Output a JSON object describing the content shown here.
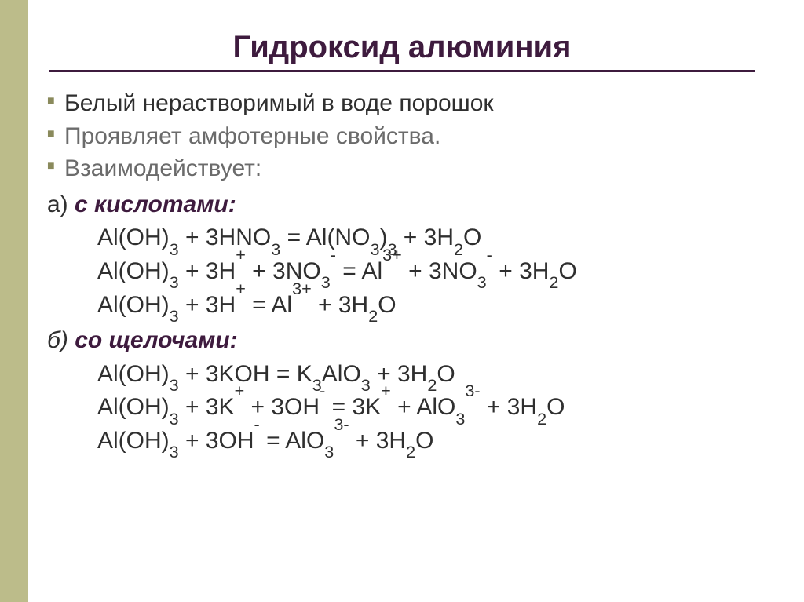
{
  "colors": {
    "sidebar": "#bcbc8a",
    "title": "#3e1b3e",
    "rule": "#3e1b3e",
    "bullet": "#8a8a5c",
    "body_dark": "#2f2f2f",
    "body_gray": "#6b6b6b",
    "section_label": "#3e1b3e",
    "background": "#ffffff"
  },
  "fonts": {
    "title_size": 40,
    "body_size": 30,
    "family": "Arial, Helvetica, sans-serif"
  },
  "title": "Гидроксид алюминия",
  "bullet_glyph": "■",
  "intro": {
    "line1": "Белый нерастворимый в воде порошок",
    "line2": "Проявляет амфотерные свойства.",
    "line3": "Взаимодействует:"
  },
  "section_a": {
    "label": "а) с кислотами:",
    "eq1": "Al(OH)<sub>3</sub> + 3HNO<sub>3</sub> = Al(NO<sub>3</sub>)<sub>3</sub> + 3H<sub>2</sub>O",
    "eq2": "Al(OH)<sub>3</sub> + 3H<sup>+</sup> + 3NO<sub>3</sub><sup>-</sup> = Al<sup>3+</sup> + 3NO<sub>3</sub><sup>-</sup> + 3H<sub>2</sub>O",
    "eq3": "Al(OH)<sub>3</sub> + 3H<sup>+</sup> = Al<sup>3+</sup> + 3H<sub>2</sub>O"
  },
  "section_b": {
    "label": "б) со щелочами:",
    "eq1": "Al(OH)<sub>3</sub> + 3KOH = K<sub>3</sub>AlO<sub>3</sub> + 3H<sub>2</sub>O",
    "eq2": "Al(OH)<sub>3</sub> + 3K<sup>+</sup> + 3OH<sup>-</sup> = 3K<sup>+</sup> + AlO<sub>3</sub><sup>3-</sup> + 3H<sub>2</sub>O",
    "eq3": "Al(OH)<sub>3</sub> + 3OH<sup>-</sup> = AlO<sub>3</sub><sup>3-</sup> + 3H<sub>2</sub>O"
  }
}
